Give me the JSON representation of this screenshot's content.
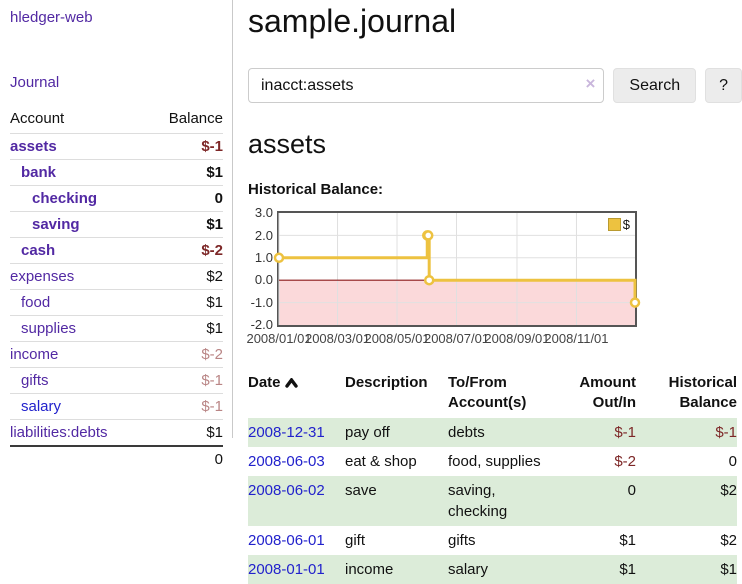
{
  "app": {
    "brand": "hledger-web",
    "nav_journal": "Journal"
  },
  "sidebar": {
    "headers": {
      "account": "Account",
      "balance": "Balance"
    },
    "accounts": [
      {
        "name": "assets",
        "balance": "$-1",
        "indent": 0,
        "bold": true,
        "negative": "strong",
        "link": "purple"
      },
      {
        "name": "bank",
        "balance": "$1",
        "indent": 1,
        "bold": true,
        "negative": "none",
        "link": "purple"
      },
      {
        "name": "checking",
        "balance": "0",
        "indent": 2,
        "bold": true,
        "negative": "none",
        "link": "purple"
      },
      {
        "name": "saving",
        "balance": "$1",
        "indent": 2,
        "bold": true,
        "negative": "none",
        "link": "purple"
      },
      {
        "name": "cash",
        "balance": "$-2",
        "indent": 1,
        "bold": true,
        "negative": "strong",
        "link": "purple"
      },
      {
        "name": "expenses",
        "balance": "$2",
        "indent": 0,
        "bold": false,
        "negative": "none",
        "link": "purple"
      },
      {
        "name": "food",
        "balance": "$1",
        "indent": 1,
        "bold": false,
        "negative": "none",
        "link": "purple"
      },
      {
        "name": "supplies",
        "balance": "$1",
        "indent": 1,
        "bold": false,
        "negative": "none",
        "link": "purple"
      },
      {
        "name": "income",
        "balance": "$-2",
        "indent": 0,
        "bold": false,
        "negative": "faded",
        "link": "purple"
      },
      {
        "name": "gifts",
        "balance": "$-1",
        "indent": 1,
        "bold": false,
        "negative": "faded",
        "link": "purple"
      },
      {
        "name": "salary",
        "balance": "$-1",
        "indent": 1,
        "bold": false,
        "negative": "faded",
        "link": "blue"
      },
      {
        "name": "liabilities:debts",
        "balance": "$1",
        "indent": 0,
        "bold": false,
        "negative": "none",
        "link": "purple"
      }
    ],
    "total": "0"
  },
  "header": {
    "title": "sample.journal"
  },
  "search": {
    "value": "inacct:assets",
    "clear_icon": "×",
    "button_label": "Search",
    "help_label": "?"
  },
  "account_page": {
    "title": "assets",
    "chart_label": "Historical Balance:"
  },
  "chart_data": {
    "type": "line",
    "title": "Historical Balance",
    "step": true,
    "series": [
      {
        "name": "$",
        "color": "#EDC240",
        "points": [
          [
            "2008-01-01",
            1
          ],
          [
            "2008-06-01",
            2
          ],
          [
            "2008-06-02",
            2
          ],
          [
            "2008-06-03",
            0
          ],
          [
            "2008-12-31",
            -1
          ]
        ]
      }
    ],
    "x_range": [
      "2008-01-01",
      "2008-12-31"
    ],
    "x_ticks": [
      "2008/01/01",
      "2008/03/01",
      "2008/05/01",
      "2008/07/01",
      "2008/09/01",
      "2008/11/01"
    ],
    "y_ticks": [
      3.0,
      2.0,
      1.0,
      0.0,
      -1.0,
      -2.0
    ],
    "ylim": [
      -2,
      3
    ],
    "grid": true,
    "legend": "$",
    "legend_position": "top-right",
    "negative_region_color": "#fbd9da",
    "zero_line_color": "#8b1a1a",
    "gridline_color": "#e0e0e0"
  },
  "register": {
    "headers": {
      "date": "Date",
      "description": "Description",
      "accounts": "To/From Account(s)",
      "amount": "Amount Out/In",
      "balance": "Historical Balance"
    },
    "rows": [
      {
        "date": "2008-12-31",
        "description": "pay off",
        "accounts": "debts",
        "amount": "$-1",
        "balance": "$-1"
      },
      {
        "date": "2008-06-03",
        "description": "eat & shop",
        "accounts": "food, supplies",
        "amount": "$-2",
        "balance": "0"
      },
      {
        "date": "2008-06-02",
        "description": "save",
        "accounts": "saving, checking",
        "amount": "0",
        "balance": "$2"
      },
      {
        "date": "2008-06-01",
        "description": "gift",
        "accounts": "gifts",
        "amount": "$1",
        "balance": "$2"
      },
      {
        "date": "2008-01-01",
        "description": "income",
        "accounts": "salary",
        "amount": "$1",
        "balance": "$1"
      }
    ]
  }
}
